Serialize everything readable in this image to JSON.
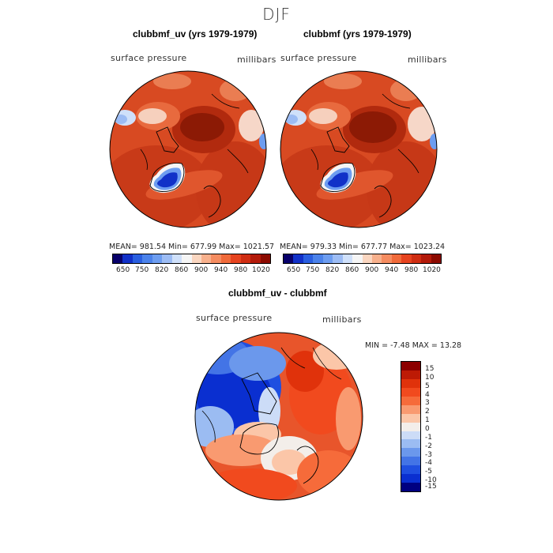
{
  "title": "DJF",
  "panels": [
    {
      "title": "clubbmf_uv (yrs 1979-1979)",
      "var": "surface pressure",
      "units": "millibars",
      "stats": "MEAN= 981.54   Min= 677.99   Max= 1021.57"
    },
    {
      "title": "clubbmf (yrs 1979-1979)",
      "var": "surface pressure",
      "units": "millibars",
      "stats": "MEAN= 979.33   Min= 677.77   Max= 1023.24"
    }
  ],
  "diff": {
    "title": "clubbmf_uv - clubbmf",
    "var": "surface pressure",
    "units": "millibars",
    "stats": "MIN =   -7.48 MAX =   13.28"
  },
  "top_colorbar": {
    "colors": [
      "#08006b",
      "#1131c8",
      "#2a5fe0",
      "#4b82ea",
      "#6d9df0",
      "#9cbcf4",
      "#cfe0fa",
      "#f5f5f5",
      "#fad6c0",
      "#f7b08c",
      "#f58c60",
      "#f06a3a",
      "#e6431f",
      "#cf2d12",
      "#b31a0a",
      "#8c0a00"
    ],
    "labels": [
      "650",
      "750",
      "820",
      "860",
      "900",
      "940",
      "980",
      "1020"
    ]
  },
  "diff_colorbar": {
    "colors": [
      "#8c0000",
      "#bd1a05",
      "#e0320b",
      "#f14a1e",
      "#f66b3a",
      "#f99a70",
      "#fbc6a8",
      "#f3eeea",
      "#ccdcf7",
      "#9bbcf2",
      "#6b98ec",
      "#4374e6",
      "#1f4fe0",
      "#0a2fd0",
      "#000080"
    ],
    "labels": [
      "15",
      "10",
      "5",
      "4",
      "3",
      "2",
      "1",
      "0",
      "-1",
      "-2",
      "-3",
      "-4",
      "-5",
      "-10",
      "-15"
    ]
  }
}
